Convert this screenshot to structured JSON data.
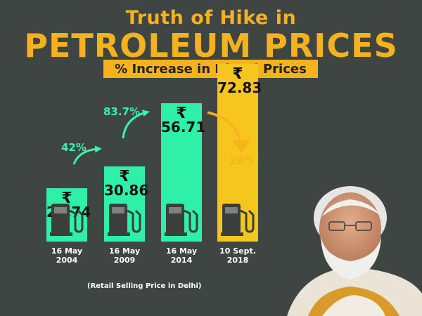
{
  "header": {
    "title_line1": "Truth of Hike in",
    "title_line2": "PETROLEUM PRICES",
    "subtitle": "% Increase in Diesel Prices"
  },
  "footnote": "(Retail Selling Price in Delhi)",
  "currency_symbol": "₹",
  "colors": {
    "background": "#3f4543",
    "bar_green": "#2ff0a8",
    "bar_yellow": "#f6c51e",
    "accent_orange": "#f4b31e",
    "arrow_green": "#3cf0b0",
    "arrow_yellow": "#f5b41c"
  },
  "chart_data": {
    "type": "bar",
    "title": "% Increase in Diesel Prices",
    "categories": [
      "16 May 2004",
      "16 May 2009",
      "16 May 2014",
      "10 Sept. 2018"
    ],
    "category_lines": [
      [
        "16 May",
        "2004"
      ],
      [
        "16 May",
        "2009"
      ],
      [
        "16 May",
        "2014"
      ],
      [
        "10 Sept.",
        "2018"
      ]
    ],
    "values": [
      21.74,
      30.86,
      56.71,
      72.83
    ],
    "value_labels": [
      "21.74",
      "30.86",
      "56.71",
      "72.83"
    ],
    "unit": "₹",
    "bar_colors": [
      "#2ff0a8",
      "#2ff0a8",
      "#2ff0a8",
      "#f6c51e"
    ],
    "changes": [
      {
        "from": "16 May 2004",
        "to": "16 May 2009",
        "label": "42%"
      },
      {
        "from": "16 May 2009",
        "to": "16 May 2014",
        "label": "83.7%"
      },
      {
        "from": "16 May 2014",
        "to": "10 Sept. 2018",
        "label": "28%"
      }
    ],
    "xlabel": "",
    "ylabel": "",
    "grid": false,
    "legend": "none"
  }
}
